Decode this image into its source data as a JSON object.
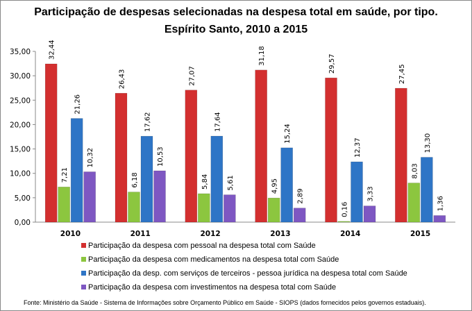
{
  "chart_data": {
    "type": "bar",
    "title": "Participação de despesas selecionadas na despesa total em saúde, por tipo.",
    "subtitle": "Espírito Santo, 2010 a 2015",
    "categories": [
      "2010",
      "2011",
      "2012",
      "2013",
      "2014",
      "2015"
    ],
    "series": [
      {
        "name": "Participação da despesa com pessoal na despesa total com Saúde",
        "color": "#d32f2f",
        "values": [
          32.44,
          26.43,
          27.07,
          31.18,
          29.57,
          27.45
        ]
      },
      {
        "name": "Participação da despesa com medicamentos na despesa total com Saúde",
        "color": "#8cc63f",
        "values": [
          7.21,
          6.18,
          5.84,
          4.95,
          0.16,
          8.03
        ]
      },
      {
        "name": "Participação da desp. com serviços de terceiros - pessoa jurídica na despesa total com Saúde",
        "color": "#2e75c6",
        "values": [
          21.26,
          17.62,
          17.64,
          15.24,
          12.37,
          13.3
        ]
      },
      {
        "name": "Participação da despesa com investimentos na despesa total com Saúde",
        "color": "#7e57c2",
        "values": [
          10.32,
          10.53,
          5.61,
          2.89,
          3.33,
          1.36
        ]
      }
    ],
    "ylim": [
      0,
      35
    ],
    "yticks": [
      "0,00",
      "5,00",
      "10,00",
      "15,00",
      "20,00",
      "25,00",
      "30,00",
      "35,00"
    ],
    "grid": false,
    "legend": "bottom",
    "data_labels": true
  },
  "source": "Fonte: Ministério da Saúde - Sistema de Informações sobre Orçamento Público em Saúde - SIOPS (dados fornecidos pelos governos estaduais)."
}
